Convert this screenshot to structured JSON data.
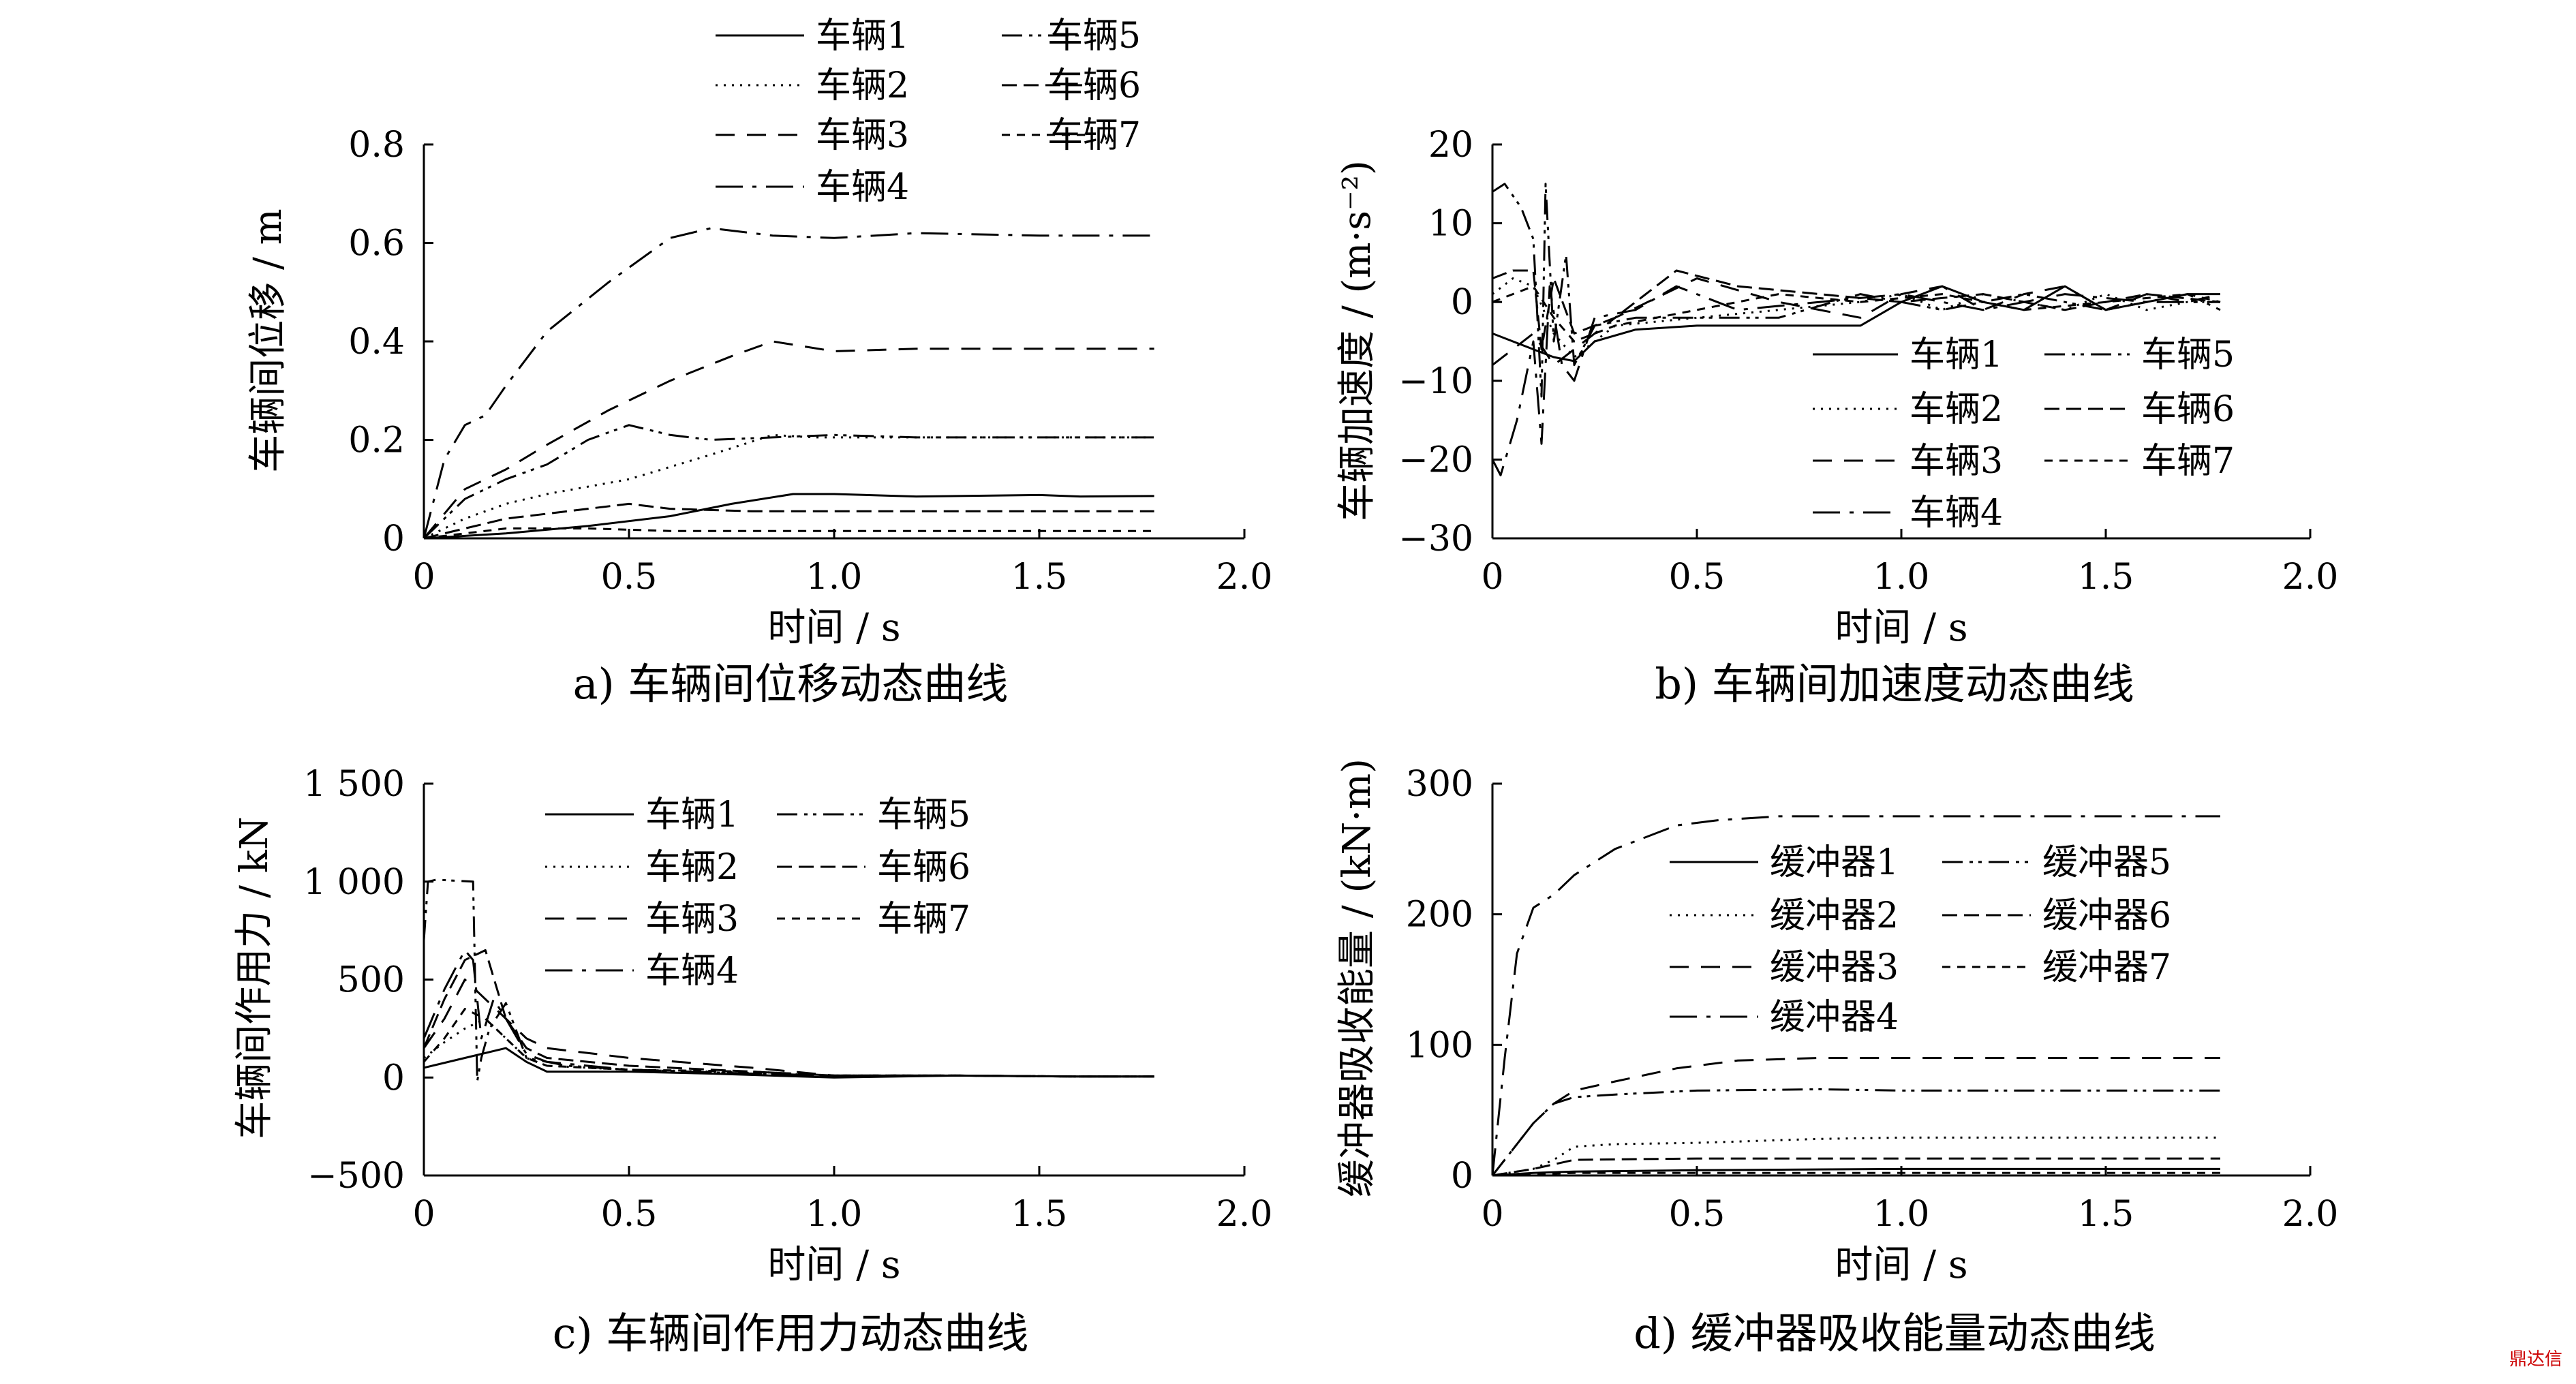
{
  "watermark": "鼎达信",
  "chart_data": [
    {
      "type": "line",
      "caption": "a)  车辆间位移动态曲线",
      "xlabel": "时间 / s",
      "ylabel": "车辆间位移 / m",
      "xlim": [
        0,
        2.0
      ],
      "ylim": [
        0,
        0.8
      ],
      "xticks": [
        0,
        0.5,
        1.0,
        1.5,
        2.0
      ],
      "xtick_labels": [
        "0",
        "0.5",
        "1.0",
        "1.5",
        "2.0"
      ],
      "yticks": [
        0,
        0.2,
        0.4,
        0.6,
        0.8
      ],
      "ytick_labels": [
        "0",
        "0.2",
        "0.4",
        "0.6",
        "0.8"
      ],
      "legend": "top",
      "series": [
        {
          "name": "车辆1",
          "x": [
            0,
            0.2,
            0.4,
            0.6,
            0.75,
            0.9,
            1.0,
            1.2,
            1.5,
            1.6,
            1.78
          ],
          "y": [
            0,
            0.01,
            0.025,
            0.045,
            0.07,
            0.09,
            0.09,
            0.085,
            0.088,
            0.085,
            0.086
          ]
        },
        {
          "name": "车辆2",
          "x": [
            0,
            0.1,
            0.2,
            0.3,
            0.5,
            0.7,
            0.85,
            0.95,
            1.2,
            1.5,
            1.78
          ],
          "y": [
            0,
            0.04,
            0.07,
            0.09,
            0.12,
            0.17,
            0.21,
            0.205,
            0.205,
            0.205,
            0.205
          ]
        },
        {
          "name": "车辆3",
          "x": [
            0,
            0.1,
            0.2,
            0.3,
            0.45,
            0.6,
            0.75,
            0.85,
            1.0,
            1.2,
            1.5,
            1.78
          ],
          "y": [
            0,
            0.1,
            0.14,
            0.19,
            0.26,
            0.32,
            0.37,
            0.4,
            0.38,
            0.385,
            0.385,
            0.385
          ]
        },
        {
          "name": "车辆4",
          "x": [
            0,
            0.05,
            0.1,
            0.15,
            0.2,
            0.3,
            0.45,
            0.6,
            0.7,
            0.85,
            1.0,
            1.2,
            1.5,
            1.78
          ],
          "y": [
            0,
            0.16,
            0.23,
            0.25,
            0.31,
            0.42,
            0.52,
            0.61,
            0.63,
            0.615,
            0.61,
            0.62,
            0.615,
            0.615
          ]
        },
        {
          "name": "车辆5",
          "x": [
            0,
            0.1,
            0.2,
            0.3,
            0.4,
            0.5,
            0.6,
            0.7,
            0.85,
            1.0,
            1.2,
            1.5,
            1.78
          ],
          "y": [
            0,
            0.08,
            0.12,
            0.15,
            0.2,
            0.23,
            0.21,
            0.2,
            0.205,
            0.21,
            0.205,
            0.205,
            0.205
          ]
        },
        {
          "name": "车辆6",
          "x": [
            0,
            0.1,
            0.2,
            0.3,
            0.4,
            0.5,
            0.6,
            0.8,
            1.0,
            1.5,
            1.78
          ],
          "y": [
            0,
            0.02,
            0.04,
            0.05,
            0.06,
            0.07,
            0.06,
            0.055,
            0.055,
            0.055,
            0.055
          ]
        },
        {
          "name": "车辆7",
          "x": [
            0,
            0.1,
            0.2,
            0.4,
            0.6,
            0.8,
            1.0,
            1.5,
            1.78
          ],
          "y": [
            0,
            0.01,
            0.02,
            0.02,
            0.015,
            0.015,
            0.015,
            0.015,
            0.015
          ]
        }
      ]
    },
    {
      "type": "line",
      "caption": "b)  车辆间加速度动态曲线",
      "xlabel": "时间 / s",
      "ylabel": "车辆加速度 / (m·s⁻²)",
      "xlim": [
        0,
        2.0
      ],
      "ylim": [
        -30,
        20
      ],
      "xticks": [
        0,
        0.5,
        1.0,
        1.5,
        2.0
      ],
      "xtick_labels": [
        "0",
        "0.5",
        "1.0",
        "1.5",
        "2.0"
      ],
      "yticks": [
        -30,
        -20,
        -10,
        0,
        10,
        20
      ],
      "ytick_labels": [
        "−30",
        "−20",
        "−10",
        "0",
        "10",
        "20"
      ],
      "legend": "right",
      "series": [
        {
          "name": "车辆1",
          "x": [
            0,
            0.05,
            0.1,
            0.15,
            0.2,
            0.25,
            0.35,
            0.5,
            0.7,
            0.9,
            1.0,
            1.1,
            1.2,
            1.3,
            1.4,
            1.5,
            1.6,
            1.7,
            1.78
          ],
          "y": [
            -4,
            -5,
            -6,
            -7,
            -7.5,
            -5,
            -3.5,
            -3,
            -3,
            -3,
            0,
            2,
            0,
            -1,
            2,
            -1,
            0,
            1,
            1
          ]
        },
        {
          "name": "车辆2",
          "x": [
            0,
            0.05,
            0.1,
            0.15,
            0.2,
            0.3,
            0.5,
            0.7,
            0.9,
            1.0,
            1.1,
            1.2,
            1.3,
            1.4,
            1.5,
            1.6,
            1.7,
            1.78
          ],
          "y": [
            1,
            3,
            2,
            -4,
            -7,
            -3,
            -2,
            -1,
            0,
            1,
            -1,
            1,
            0,
            -1,
            1,
            -1,
            0,
            0
          ]
        },
        {
          "name": "车辆3",
          "x": [
            0,
            0.05,
            0.1,
            0.15,
            0.2,
            0.3,
            0.5,
            0.7,
            0.9,
            1.0,
            1.1,
            1.2,
            1.3,
            1.4,
            1.5,
            1.6,
            1.7,
            1.78
          ],
          "y": [
            -8,
            -6,
            -4,
            -8,
            -6,
            -2,
            3,
            0,
            -2,
            1,
            2,
            -1,
            1,
            2,
            -1,
            1,
            0,
            1
          ]
        },
        {
          "name": "车辆4",
          "x": [
            0,
            0.02,
            0.06,
            0.1,
            0.12,
            0.14,
            0.17,
            0.2,
            0.25,
            0.35,
            0.45,
            0.6,
            0.8,
            1.0,
            1.2,
            1.4,
            1.6,
            1.78
          ],
          "y": [
            -20,
            -22,
            -15,
            -5,
            -18,
            2,
            -8,
            -10,
            -2,
            -1,
            2,
            -1,
            0,
            1,
            -1,
            1,
            0,
            0
          ]
        },
        {
          "name": "车辆5",
          "x": [
            0,
            0.03,
            0.07,
            0.1,
            0.12,
            0.13,
            0.15,
            0.18,
            0.2,
            0.25,
            0.35,
            0.5,
            0.7,
            0.9,
            1.1,
            1.3,
            1.5,
            1.7,
            1.78
          ],
          "y": [
            14,
            15,
            12,
            8,
            -12,
            15,
            -5,
            6,
            -8,
            -3,
            -2,
            -2,
            -2,
            1,
            -1,
            1,
            -1,
            1,
            -1
          ]
        },
        {
          "name": "车辆6",
          "x": [
            0,
            0.05,
            0.1,
            0.12,
            0.15,
            0.2,
            0.3,
            0.45,
            0.6,
            0.8,
            1.0,
            1.2,
            1.4,
            1.6,
            1.78
          ],
          "y": [
            3,
            4,
            4,
            -6,
            3,
            -4,
            -2,
            4,
            2,
            1,
            0,
            1,
            -1,
            1,
            0
          ]
        },
        {
          "name": "车辆7",
          "x": [
            0,
            0.05,
            0.1,
            0.15,
            0.2,
            0.3,
            0.5,
            0.7,
            0.9,
            1.1,
            1.3,
            1.5,
            1.7,
            1.78
          ],
          "y": [
            0,
            1,
            2,
            -2,
            -5,
            -3,
            -1,
            1,
            0,
            1,
            -1,
            0,
            1,
            0
          ]
        }
      ]
    },
    {
      "type": "line",
      "caption": "c)  车辆间作用力动态曲线",
      "xlabel": "时间 / s",
      "ylabel": "车辆间作用力 / kN",
      "xlim": [
        0,
        2.0
      ],
      "ylim": [
        -500,
        1500
      ],
      "xticks": [
        0,
        0.5,
        1.0,
        1.5,
        2.0
      ],
      "xtick_labels": [
        "0",
        "0.5",
        "1.0",
        "1.5",
        "2.0"
      ],
      "yticks": [
        -500,
        0,
        500,
        1000,
        1500
      ],
      "ytick_labels": [
        "−500",
        "0",
        "500",
        "1 000",
        "1 500"
      ],
      "legend": "top",
      "series": [
        {
          "name": "车辆1",
          "x": [
            0,
            0.1,
            0.2,
            0.25,
            0.3,
            0.5,
            0.7,
            1.0,
            1.3,
            1.6,
            1.78
          ],
          "y": [
            50,
            100,
            150,
            80,
            30,
            30,
            20,
            0,
            10,
            5,
            5
          ]
        },
        {
          "name": "车辆2",
          "x": [
            0,
            0.05,
            0.1,
            0.15,
            0.2,
            0.25,
            0.3,
            0.5,
            0.7,
            1.0,
            1.3,
            1.6,
            1.78
          ],
          "y": [
            100,
            180,
            250,
            300,
            200,
            100,
            60,
            40,
            30,
            10,
            10,
            5,
            5
          ]
        },
        {
          "name": "车辆3",
          "x": [
            0,
            0.05,
            0.1,
            0.15,
            0.2,
            0.25,
            0.3,
            0.5,
            0.8,
            1.0,
            1.3,
            1.6,
            1.78
          ],
          "y": [
            150,
            300,
            500,
            400,
            300,
            200,
            150,
            100,
            50,
            10,
            10,
            5,
            5
          ]
        },
        {
          "name": "车辆4",
          "x": [
            0,
            0.05,
            0.1,
            0.12,
            0.14,
            0.17,
            0.2,
            0.25,
            0.3,
            0.5,
            0.8,
            1.0,
            1.3,
            1.6,
            1.78
          ],
          "y": [
            200,
            450,
            650,
            600,
            200,
            400,
            300,
            120,
            80,
            40,
            20,
            10,
            10,
            5,
            5
          ]
        },
        {
          "name": "车辆5",
          "x": [
            0,
            0.01,
            0.03,
            0.12,
            0.13,
            0.14,
            0.16,
            0.2,
            0.25,
            0.35,
            0.5,
            0.8,
            1.0,
            1.3,
            1.6,
            1.78
          ],
          "y": [
            700,
            1000,
            1010,
            1000,
            -20,
            100,
            250,
            380,
            100,
            60,
            40,
            20,
            10,
            10,
            5,
            5
          ]
        },
        {
          "name": "车辆6",
          "x": [
            0,
            0.05,
            0.1,
            0.15,
            0.2,
            0.25,
            0.3,
            0.5,
            0.8,
            1.0,
            1.3,
            1.6,
            1.78
          ],
          "y": [
            150,
            400,
            600,
            650,
            300,
            150,
            100,
            60,
            30,
            10,
            10,
            5,
            5
          ]
        },
        {
          "name": "车辆7",
          "x": [
            0,
            0.05,
            0.1,
            0.15,
            0.2,
            0.25,
            0.3,
            0.5,
            0.8,
            1.0,
            1.3,
            1.6,
            1.78
          ],
          "y": [
            80,
            200,
            350,
            300,
            200,
            100,
            60,
            40,
            30,
            10,
            10,
            5,
            5
          ]
        }
      ]
    },
    {
      "type": "line",
      "caption": "d)  缓冲器吸收能量动态曲线",
      "xlabel": "时间 / s",
      "ylabel": "缓冲器吸收能量 / (kN·m)",
      "xlim": [
        0,
        2.0
      ],
      "ylim": [
        0,
        300
      ],
      "xticks": [
        0,
        0.5,
        1.0,
        1.5,
        2.0
      ],
      "xtick_labels": [
        "0",
        "0.5",
        "1.0",
        "1.5",
        "2.0"
      ],
      "yticks": [
        0,
        100,
        200,
        300
      ],
      "ytick_labels": [
        "0",
        "100",
        "200",
        "300"
      ],
      "legend": "center-right",
      "series": [
        {
          "name": "缓冲器1",
          "x": [
            0,
            0.1,
            0.2,
            0.5,
            1.0,
            1.5,
            1.78
          ],
          "y": [
            0,
            2,
            3,
            4,
            5,
            5,
            5
          ]
        },
        {
          "name": "缓冲器2",
          "x": [
            0,
            0.1,
            0.15,
            0.2,
            0.3,
            0.5,
            0.8,
            1.0,
            1.5,
            1.78
          ],
          "y": [
            0,
            5,
            12,
            22,
            24,
            25,
            28,
            29,
            29,
            29
          ]
        },
        {
          "name": "缓冲器3",
          "x": [
            0,
            0.05,
            0.1,
            0.15,
            0.2,
            0.3,
            0.45,
            0.6,
            0.8,
            1.0,
            1.5,
            1.78
          ],
          "y": [
            0,
            20,
            40,
            55,
            65,
            72,
            82,
            88,
            90,
            90,
            90,
            90
          ]
        },
        {
          "name": "缓冲器4",
          "x": [
            0,
            0.03,
            0.06,
            0.1,
            0.15,
            0.2,
            0.3,
            0.45,
            0.55,
            0.7,
            1.0,
            1.5,
            1.78
          ],
          "y": [
            0,
            90,
            170,
            205,
            215,
            230,
            250,
            268,
            272,
            275,
            275,
            275,
            275
          ]
        },
        {
          "name": "缓冲器5",
          "x": [
            0,
            0.05,
            0.1,
            0.15,
            0.2,
            0.3,
            0.5,
            0.8,
            1.0,
            1.5,
            1.78
          ],
          "y": [
            0,
            20,
            40,
            55,
            60,
            62,
            65,
            66,
            65,
            65,
            65
          ]
        },
        {
          "name": "缓冲器6",
          "x": [
            0,
            0.1,
            0.2,
            0.5,
            1.0,
            1.5,
            1.78
          ],
          "y": [
            0,
            5,
            12,
            13,
            13,
            13,
            13
          ]
        },
        {
          "name": "缓冲器7",
          "x": [
            0,
            0.1,
            0.2,
            0.5,
            1.0,
            1.5,
            1.78
          ],
          "y": [
            0,
            1,
            2,
            2,
            2,
            2,
            2
          ]
        }
      ]
    }
  ]
}
